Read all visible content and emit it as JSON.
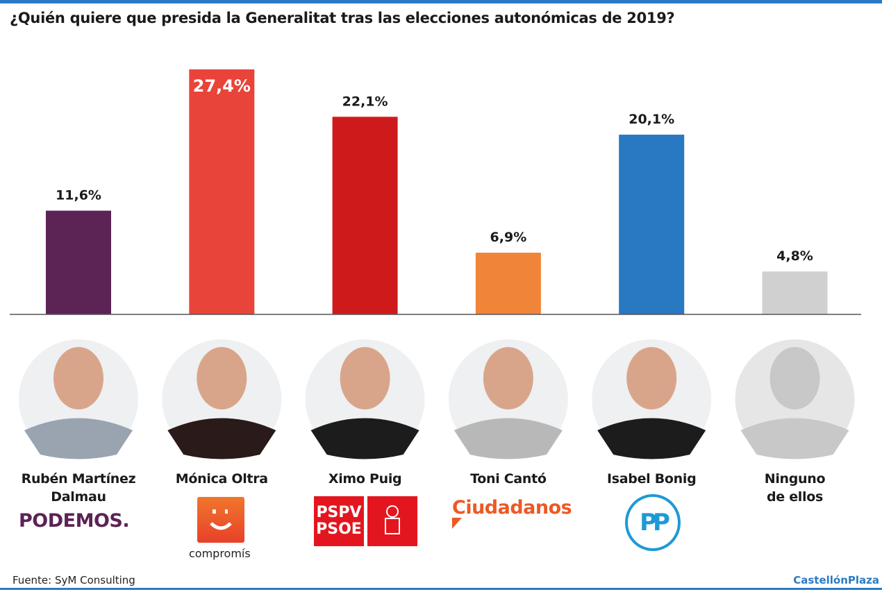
{
  "chart_data": {
    "type": "bar",
    "title": "¿Quién quiere que presida la Generalitat tras las elecciones autonómicas de 2019?",
    "categories": [
      "Rubén Martínez Dalmau",
      "Mónica Oltra",
      "Ximo Puig",
      "Toni Cantó",
      "Isabel Bonig",
      "Ninguno de ellos"
    ],
    "values": [
      11.6,
      27.4,
      22.1,
      6.9,
      20.1,
      4.8
    ],
    "data_labels": [
      "11,6%",
      "27,4%",
      "22,1%",
      "6,9%",
      "20,1%",
      "4,8%"
    ],
    "colors": [
      "#5c2355",
      "#e8443a",
      "#cf1a1b",
      "#f08439",
      "#2878c2",
      "#d0d0d0"
    ],
    "ylim": [
      0,
      27.4
    ],
    "grid": false,
    "xlabel": "",
    "ylabel": ""
  },
  "candidates": [
    {
      "name_line1": "Rubén Martínez",
      "name_line2": "Dalmau",
      "party_logo": "PODEMOS.",
      "party_color": "#5c2355"
    },
    {
      "name_line1": "Mónica Oltra",
      "name_line2": "",
      "party_logo": "compromís",
      "party_color": "#f0652b"
    },
    {
      "name_line1": "Ximo Puig",
      "name_line2": "",
      "party_logo": "PSPV PSOE",
      "party_logo_line1": "PSPV",
      "party_logo_line2": "PSOE",
      "party_color": "#e3161f"
    },
    {
      "name_line1": "Toni Cantó",
      "name_line2": "",
      "party_logo": "Ciudadanos",
      "party_color": "#ec5a24"
    },
    {
      "name_line1": "Isabel Bonig",
      "name_line2": "",
      "party_logo": "PP",
      "party_color": "#1d9ad6"
    },
    {
      "name_line1": "Ninguno",
      "name_line2": "de ellos",
      "party_logo": "",
      "party_color": ""
    }
  ],
  "footer": {
    "source": "Fuente: SyM Consulting",
    "brand": "CastellónPlaza"
  }
}
